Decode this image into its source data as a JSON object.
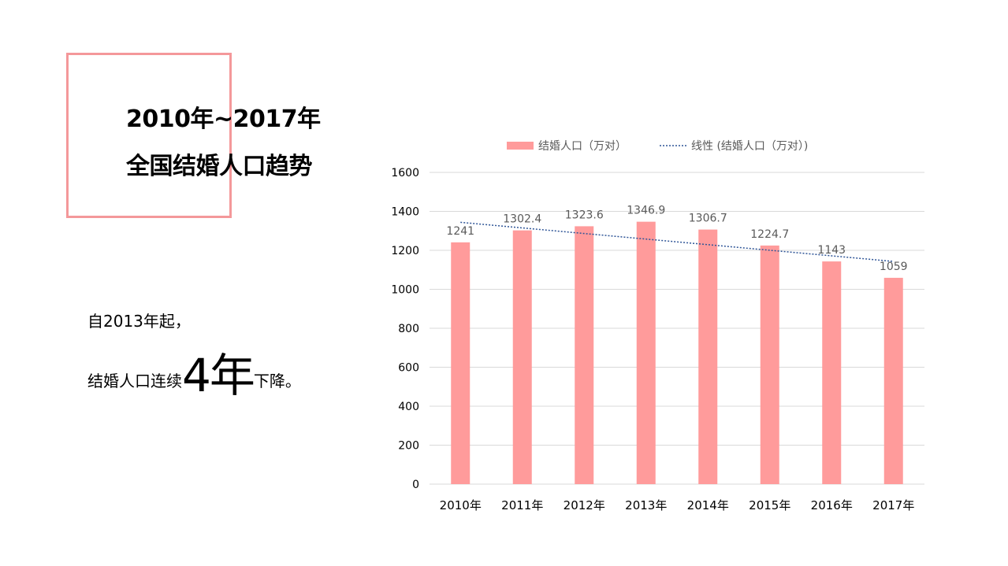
{
  "slide": {
    "title_line1": "2010年~2017年",
    "title_line2": "全国结婚人口趋势",
    "note_line1": "自2013年起，",
    "note_line2_prefix": "结婚人口连续",
    "note_line2_emphasis": "4年",
    "note_line2_suffix": "下降。",
    "accent_color": "#f4989a"
  },
  "chart_data": {
    "type": "bar",
    "categories": [
      "2010年",
      "2011年",
      "2012年",
      "2013年",
      "2014年",
      "2015年",
      "2016年",
      "2017年"
    ],
    "series": [
      {
        "name": "结婚人口（万对）",
        "values": [
          1241,
          1302.4,
          1323.6,
          1346.9,
          1306.7,
          1224.7,
          1143,
          1059
        ],
        "color": "#ff9b9b"
      }
    ],
    "data_labels": [
      "1241",
      "1302.4",
      "1323.6",
      "1346.9",
      "1306.7",
      "1224.7",
      "1143",
      "1059"
    ],
    "trendline": {
      "name": "线性 (结婚人口（万对）)",
      "type": "linear",
      "style": "dotted",
      "color": "#2f5597"
    },
    "ylim": [
      0,
      1600
    ],
    "yticks": [
      "0",
      "200",
      "400",
      "600",
      "800",
      "1000",
      "1200",
      "1400",
      "1600"
    ],
    "grid": true,
    "legend_position": "top"
  }
}
